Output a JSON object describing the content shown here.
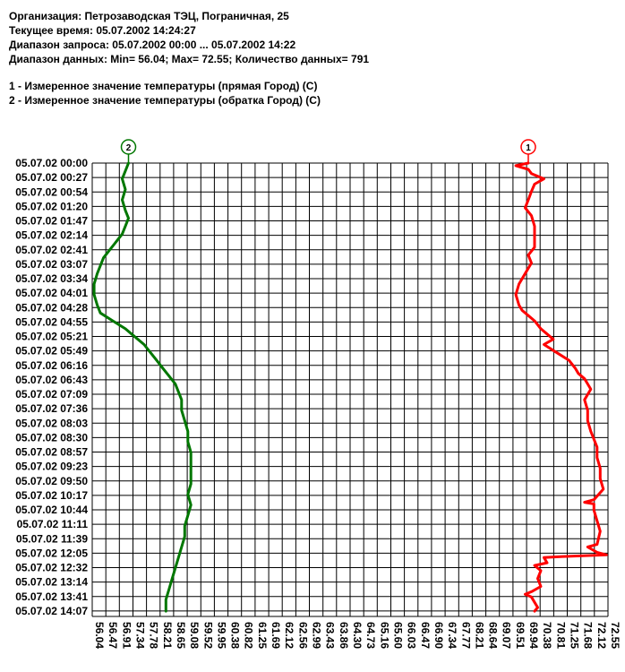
{
  "header": {
    "org": "Организация: Петрозаводская ТЭЦ, Пограничная, 25",
    "current_time": "Текущее время: 05.07.2002 14:24:27",
    "query_range": "Диапазон запроса: 05.07.2002 00:00 ... 05.07.2002 14:22",
    "data_range": "Диапазон данных: Min= 56.04; Max= 72.55; Количество данных= 791"
  },
  "legend": [
    "1 - Измеренное значение температуры (прямая Город) (C)",
    "2 - Измеренное значение температуры (обратка Город) (C)"
  ],
  "colors": {
    "series1": "#ff0000",
    "series2": "#007700",
    "grid": "#000000"
  },
  "chart_data": {
    "type": "line",
    "orientation": "vertical-time",
    "xlim": [
      56.04,
      72.55
    ],
    "ylim_minutes": [
      0,
      862
    ],
    "x_ticks": [
      "56.04",
      "56.47",
      "56.91",
      "57.34",
      "57.78",
      "58.21",
      "58.65",
      "59.08",
      "59.52",
      "59.95",
      "60.38",
      "60.82",
      "61.25",
      "61.69",
      "62.12",
      "62.56",
      "62.99",
      "63.43",
      "63.86",
      "64.30",
      "64.73",
      "65.16",
      "65.60",
      "66.03",
      "66.47",
      "66.90",
      "67.34",
      "67.77",
      "68.21",
      "68.64",
      "69.07",
      "69.51",
      "69.94",
      "70.38",
      "70.81",
      "71.25",
      "71.68",
      "72.12",
      "72.55"
    ],
    "y_ticks": [
      "05.07.02 00:00",
      "05.07.02 00:27",
      "05.07.02 00:54",
      "05.07.02 01:20",
      "05.07.02 01:47",
      "05.07.02 02:14",
      "05.07.02 02:41",
      "05.07.02 03:07",
      "05.07.02 03:34",
      "05.07.02 04:01",
      "05.07.02 04:28",
      "05.07.02 04:55",
      "05.07.02 05:21",
      "05.07.02 05:49",
      "05.07.02 06:16",
      "05.07.02 06:43",
      "05.07.02 07:09",
      "05.07.02 07:36",
      "05.07.02 08:03",
      "05.07.02 08:30",
      "05.07.02 08:57",
      "05.07.02 09:23",
      "05.07.02 09:50",
      "05.07.02 10:17",
      "05.07.02 10:44",
      "05.07.02 11:11",
      "05.07.02 11:39",
      "05.07.02 12:05",
      "05.07.02 12:32",
      "05.07.02 13:14",
      "05.07.02 13:41",
      "05.07.02 14:07"
    ],
    "series": [
      {
        "marker": "1",
        "color": "#ff0000",
        "points": [
          [
            0,
            70.0
          ],
          [
            5,
            69.6
          ],
          [
            12,
            70.0
          ],
          [
            20,
            70.1
          ],
          [
            30,
            70.5
          ],
          [
            40,
            70.2
          ],
          [
            54,
            70.1
          ],
          [
            70,
            70.0
          ],
          [
            85,
            69.9
          ],
          [
            100,
            70.1
          ],
          [
            120,
            70.2
          ],
          [
            140,
            70.2
          ],
          [
            160,
            70.2
          ],
          [
            175,
            70.0
          ],
          [
            190,
            70.1
          ],
          [
            210,
            69.9
          ],
          [
            230,
            69.7
          ],
          [
            250,
            69.6
          ],
          [
            270,
            69.7
          ],
          [
            280,
            69.8
          ],
          [
            290,
            70.0
          ],
          [
            300,
            70.2
          ],
          [
            315,
            70.4
          ],
          [
            325,
            70.6
          ],
          [
            335,
            70.8
          ],
          [
            345,
            70.5
          ],
          [
            360,
            70.9
          ],
          [
            375,
            71.3
          ],
          [
            390,
            71.5
          ],
          [
            400,
            71.6
          ],
          [
            410,
            71.8
          ],
          [
            420,
            71.9
          ],
          [
            430,
            72.0
          ],
          [
            450,
            71.8
          ],
          [
            470,
            71.9
          ],
          [
            490,
            71.9
          ],
          [
            510,
            72.0
          ],
          [
            540,
            72.2
          ],
          [
            560,
            72.2
          ],
          [
            580,
            72.3
          ],
          [
            600,
            72.3
          ],
          [
            620,
            72.4
          ],
          [
            640,
            72.1
          ],
          [
            645,
            71.8
          ],
          [
            648,
            72.1
          ],
          [
            660,
            72.1
          ],
          [
            680,
            72.2
          ],
          [
            700,
            72.3
          ],
          [
            725,
            72.2
          ],
          [
            730,
            71.9
          ],
          [
            740,
            72.2
          ],
          [
            745,
            72.5
          ],
          [
            748,
            71.1
          ],
          [
            750,
            70.5
          ],
          [
            760,
            70.6
          ],
          [
            765,
            70.2
          ],
          [
            775,
            70.4
          ],
          [
            790,
            70.3
          ],
          [
            805,
            70.4
          ],
          [
            815,
            70.1
          ],
          [
            820,
            69.9
          ],
          [
            825,
            70.1
          ],
          [
            835,
            70.2
          ],
          [
            845,
            70.3
          ],
          [
            852,
            70.2
          ]
        ]
      },
      {
        "marker": "2",
        "color": "#007700",
        "points": [
          [
            0,
            57.2
          ],
          [
            15,
            57.1
          ],
          [
            30,
            57.0
          ],
          [
            50,
            57.1
          ],
          [
            70,
            57.0
          ],
          [
            90,
            57.1
          ],
          [
            105,
            57.2
          ],
          [
            120,
            57.1
          ],
          [
            135,
            57.0
          ],
          [
            150,
            56.8
          ],
          [
            165,
            56.6
          ],
          [
            180,
            56.4
          ],
          [
            195,
            56.3
          ],
          [
            210,
            56.2
          ],
          [
            230,
            56.1
          ],
          [
            250,
            56.1
          ],
          [
            270,
            56.2
          ],
          [
            285,
            56.3
          ],
          [
            300,
            56.7
          ],
          [
            315,
            57.1
          ],
          [
            330,
            57.4
          ],
          [
            345,
            57.7
          ],
          [
            360,
            57.9
          ],
          [
            375,
            58.1
          ],
          [
            390,
            58.3
          ],
          [
            405,
            58.5
          ],
          [
            420,
            58.7
          ],
          [
            435,
            58.8
          ],
          [
            450,
            58.9
          ],
          [
            470,
            58.9
          ],
          [
            490,
            59.0
          ],
          [
            510,
            59.1
          ],
          [
            530,
            59.1
          ],
          [
            550,
            59.2
          ],
          [
            570,
            59.2
          ],
          [
            590,
            59.2
          ],
          [
            610,
            59.2
          ],
          [
            630,
            59.1
          ],
          [
            650,
            59.2
          ],
          [
            670,
            59.1
          ],
          [
            690,
            59.0
          ],
          [
            710,
            59.0
          ],
          [
            730,
            58.9
          ],
          [
            750,
            58.8
          ],
          [
            770,
            58.7
          ],
          [
            790,
            58.6
          ],
          [
            810,
            58.5
          ],
          [
            830,
            58.4
          ],
          [
            852,
            58.4
          ]
        ]
      }
    ]
  }
}
